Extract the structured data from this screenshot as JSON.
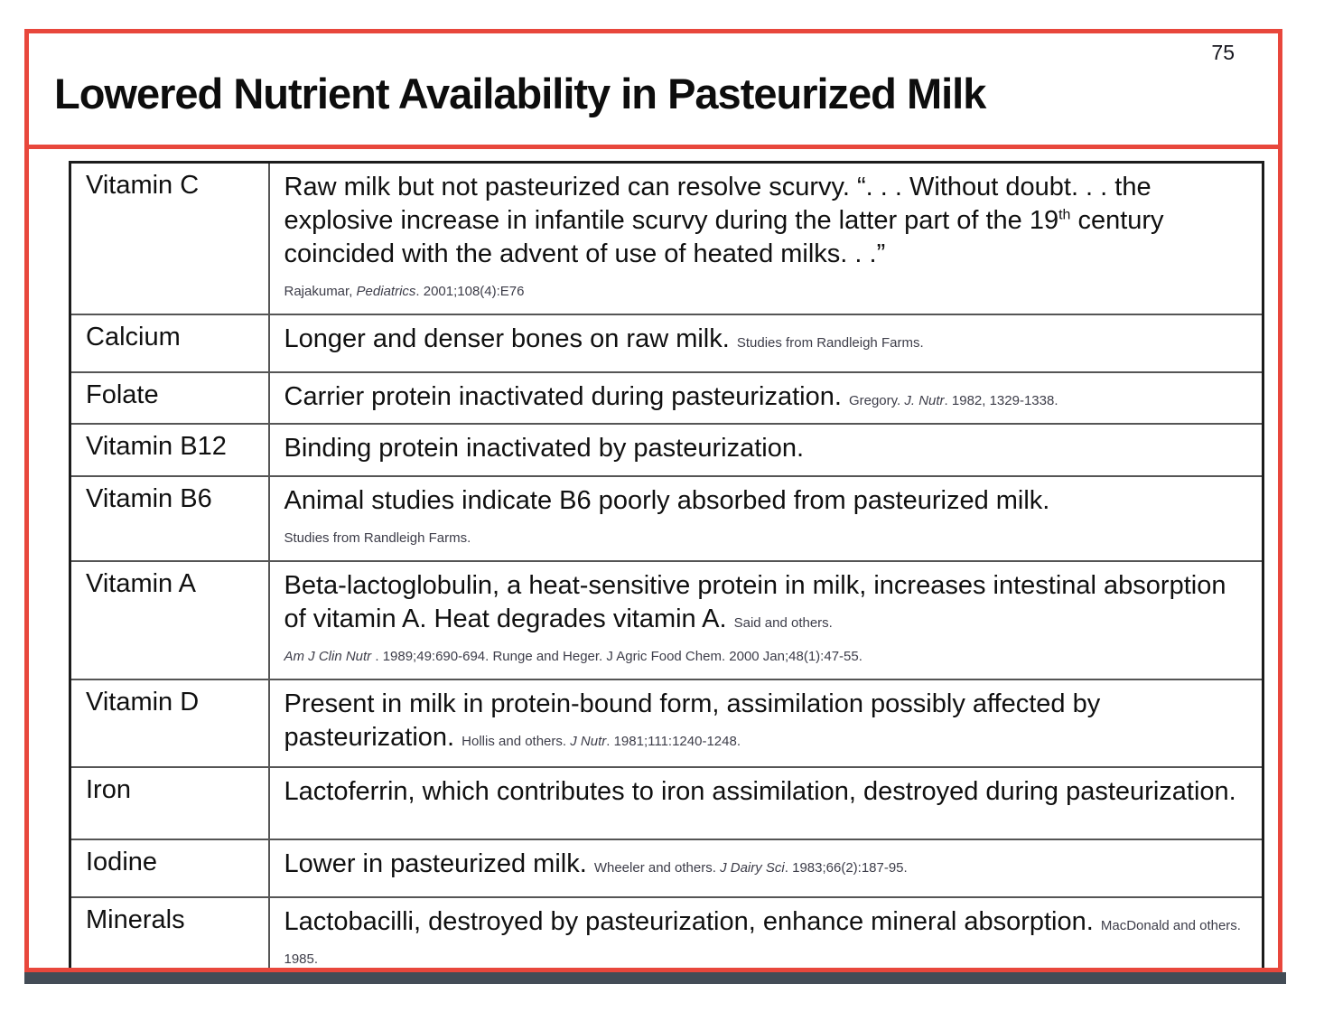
{
  "slide": {
    "number": "75",
    "title": "Lowered Nutrient Availability in Pasteurized Milk",
    "colors": {
      "accent": "#e8473c",
      "shadow_bar": "#434c56",
      "table_border": "#1c1c1c",
      "citation_text": "#3d3d49"
    },
    "table": {
      "rows": [
        {
          "nutrient": "Vitamin C",
          "parts": [
            {
              "t": "Raw milk but not pasteurized can resolve scurvy. “. . . Without doubt. . . the explosive increase in infantile scurvy during the latter part of the 19",
              "s": "body"
            },
            {
              "t": "th",
              "s": "sup"
            },
            {
              "t": " century coincided with the advent of use of heated milks. . .”",
              "s": "body"
            },
            {
              "t": "",
              "s": "br"
            },
            {
              "t": "Rajakumar, ",
              "s": "cite"
            },
            {
              "t": "Pediatrics",
              "s": "citei"
            },
            {
              "t": ". 2001;108(4):E76",
              "s": "cite"
            }
          ]
        },
        {
          "nutrient": "Calcium",
          "parts": [
            {
              "t": "Longer and denser bones on raw milk. ",
              "s": "body"
            },
            {
              "t": "Studies from Randleigh Farms.",
              "s": "cite"
            }
          ]
        },
        {
          "nutrient": "Folate",
          "parts": [
            {
              "t": "Carrier protein inactivated during pasteurization. ",
              "s": "body"
            },
            {
              "t": "Gregory. ",
              "s": "cite"
            },
            {
              "t": "J. Nutr",
              "s": "citei"
            },
            {
              "t": ". 1982, 1329-1338.",
              "s": "cite"
            }
          ]
        },
        {
          "nutrient": "Vitamin B12",
          "parts": [
            {
              "t": "Binding protein inactivated by pasteurization.",
              "s": "body"
            }
          ]
        },
        {
          "nutrient": "Vitamin B6",
          "parts": [
            {
              "t": "Animal studies indicate B6 poorly absorbed from pasteurized milk.",
              "s": "body"
            },
            {
              "t": "",
              "s": "br"
            },
            {
              "t": "Studies from Randleigh Farms.",
              "s": "cite"
            }
          ]
        },
        {
          "nutrient": "Vitamin A",
          "parts": [
            {
              "t": "Beta-lactoglobulin, a heat-sensitive protein in milk, increases intestinal absorption of vitamin A. Heat degrades vitamin A. ",
              "s": "body"
            },
            {
              "t": "Said and others.",
              "s": "cite"
            },
            {
              "t": "",
              "s": "br"
            },
            {
              "t": "Am J Clin Nutr",
              "s": "citei"
            },
            {
              "t": " . 1989;49:690-694. Runge and Heger. J Agric Food Chem. 2000 Jan;48(1):47-55.",
              "s": "cite"
            }
          ]
        },
        {
          "nutrient": "Vitamin D",
          "parts": [
            {
              "t": "Present in milk in protein-bound form, assimilation possibly affected by pasteurization. ",
              "s": "body"
            },
            {
              "t": "Hollis and others.  ",
              "s": "cite"
            },
            {
              "t": "J Nutr",
              "s": "citei"
            },
            {
              "t": ". 1981;111:1240-1248.",
              "s": "cite"
            }
          ]
        },
        {
          "nutrient": "Iron",
          "parts": [
            {
              "t": "Lactoferrin, which contributes to iron assimilation, destroyed during pasteurization.",
              "s": "body"
            }
          ]
        },
        {
          "nutrient": "Iodine",
          "parts": [
            {
              "t": "Lower in pasteurized milk. ",
              "s": "body"
            },
            {
              "t": "Wheeler and others. ",
              "s": "cite"
            },
            {
              "t": "J Dairy Sci",
              "s": "citei"
            },
            {
              "t": ". 1983;66(2):187-95.",
              "s": "cite"
            }
          ]
        },
        {
          "nutrient": "Minerals",
          "parts": [
            {
              "t": "Lactobacilli, destroyed by pasteurization, enhance mineral absorption. ",
              "s": "body"
            },
            {
              "t": "MacDonald and others. 1985.",
              "s": "cite"
            }
          ]
        }
      ]
    }
  }
}
